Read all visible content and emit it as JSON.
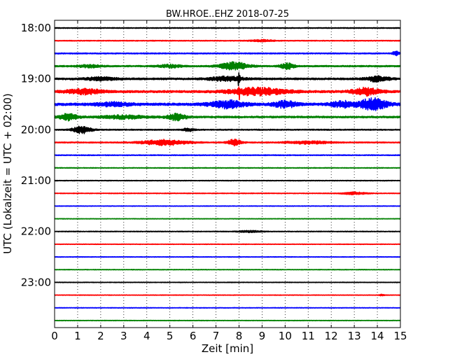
{
  "chart_data": {
    "type": "line",
    "title": "BW.HROE..EHZ 2018-07-25",
    "xlabel": "Zeit  [min]",
    "ylabel": "UTC (Lokalzeit = UTC + 02:00)",
    "xlim": [
      0,
      15
    ],
    "x_ticks": [
      "0",
      "1",
      "2",
      "3",
      "4",
      "5",
      "6",
      "7",
      "8",
      "9",
      "10",
      "11",
      "12",
      "13",
      "14",
      "15"
    ],
    "y_ticks": [
      {
        "label": "18:00",
        "trace": 0
      },
      {
        "label": "19:00",
        "trace": 4
      },
      {
        "label": "20:00",
        "trace": 8
      },
      {
        "label": "21:00",
        "trace": 12
      },
      {
        "label": "22:00",
        "trace": 16
      },
      {
        "label": "23:00",
        "trace": 20
      }
    ],
    "grid": "vertical dotted",
    "trace_interval_minutes": 15,
    "series_colors": [
      "#000000",
      "#ff0000",
      "#0000ff",
      "#008000"
    ],
    "traces": [
      {
        "start": "18:00",
        "base_amp": 0.12,
        "events": []
      },
      {
        "start": "18:15",
        "base_amp": 0.12,
        "events": [
          {
            "t": 9.0,
            "amp": 0.25,
            "dur": 1.0
          }
        ]
      },
      {
        "start": "18:30",
        "base_amp": 0.15,
        "events": [
          {
            "t": 14.8,
            "amp": 0.6,
            "dur": 0.3
          }
        ]
      },
      {
        "start": "18:45",
        "base_amp": 0.2,
        "events": [
          {
            "t": 7.8,
            "amp": 1.1,
            "dur": 1.2
          },
          {
            "t": 10.1,
            "amp": 0.8,
            "dur": 0.6
          },
          {
            "t": 5.0,
            "amp": 0.4,
            "dur": 1.0
          },
          {
            "t": 1.5,
            "amp": 0.35,
            "dur": 1.0
          }
        ]
      },
      {
        "start": "19:00",
        "base_amp": 0.25,
        "events": [
          {
            "t": 7.5,
            "amp": 0.6,
            "dur": 1.5
          },
          {
            "t": 8.0,
            "amp": 1.8,
            "dur": 0.1
          },
          {
            "t": 14.0,
            "amp": 0.7,
            "dur": 1.0
          },
          {
            "t": 2.0,
            "amp": 0.4,
            "dur": 1.5
          }
        ]
      },
      {
        "start": "19:15",
        "base_amp": 0.3,
        "events": [
          {
            "t": 1.3,
            "amp": 0.7,
            "dur": 1.5
          },
          {
            "t": 8.8,
            "amp": 1.0,
            "dur": 2.5
          },
          {
            "t": 8.0,
            "amp": 1.5,
            "dur": 0.1
          },
          {
            "t": 13.5,
            "amp": 1.0,
            "dur": 1.2
          }
        ]
      },
      {
        "start": "19:30",
        "base_amp": 0.35,
        "events": [
          {
            "t": 7.5,
            "amp": 1.0,
            "dur": 1.5
          },
          {
            "t": 10.0,
            "amp": 0.9,
            "dur": 1.0
          },
          {
            "t": 12.5,
            "amp": 0.8,
            "dur": 1.0
          },
          {
            "t": 13.8,
            "amp": 1.6,
            "dur": 1.2
          },
          {
            "t": 2.5,
            "amp": 0.5,
            "dur": 1.5
          }
        ]
      },
      {
        "start": "19:45",
        "base_amp": 0.25,
        "events": [
          {
            "t": 0.6,
            "amp": 0.9,
            "dur": 0.8
          },
          {
            "t": 5.3,
            "amp": 0.9,
            "dur": 0.8
          },
          {
            "t": 3.0,
            "amp": 0.45,
            "dur": 2.0
          }
        ]
      },
      {
        "start": "20:00",
        "base_amp": 0.15,
        "events": [
          {
            "t": 1.2,
            "amp": 1.1,
            "dur": 0.8
          },
          {
            "t": 5.8,
            "amp": 0.4,
            "dur": 0.5
          }
        ]
      },
      {
        "start": "20:15",
        "base_amp": 0.15,
        "events": [
          {
            "t": 4.8,
            "amp": 0.8,
            "dur": 2.0
          },
          {
            "t": 7.8,
            "amp": 0.9,
            "dur": 0.6
          },
          {
            "t": 11.0,
            "amp": 0.4,
            "dur": 2.0
          }
        ]
      },
      {
        "start": "20:30",
        "base_amp": 0.12,
        "events": []
      },
      {
        "start": "20:45",
        "base_amp": 0.1,
        "events": []
      },
      {
        "start": "21:00",
        "base_amp": 0.1,
        "events": []
      },
      {
        "start": "21:15",
        "base_amp": 0.1,
        "events": [
          {
            "t": 13.0,
            "amp": 0.35,
            "dur": 1.0
          }
        ]
      },
      {
        "start": "21:30",
        "base_amp": 0.08,
        "events": []
      },
      {
        "start": "21:45",
        "base_amp": 0.08,
        "events": []
      },
      {
        "start": "22:00",
        "base_amp": 0.1,
        "events": [
          {
            "t": 8.5,
            "amp": 0.25,
            "dur": 1.0
          }
        ]
      },
      {
        "start": "22:15",
        "base_amp": 0.08,
        "events": []
      },
      {
        "start": "22:30",
        "base_amp": 0.08,
        "events": []
      },
      {
        "start": "22:45",
        "base_amp": 0.08,
        "events": []
      },
      {
        "start": "23:00",
        "base_amp": 0.08,
        "events": []
      },
      {
        "start": "23:15",
        "base_amp": 0.08,
        "events": [
          {
            "t": 14.2,
            "amp": 0.2,
            "dur": 0.3
          }
        ]
      },
      {
        "start": "23:30",
        "base_amp": 0.08,
        "events": []
      },
      {
        "start": "23:45",
        "base_amp": 0.08,
        "events": []
      }
    ]
  }
}
